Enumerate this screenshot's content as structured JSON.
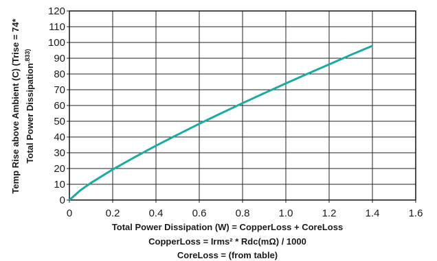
{
  "chart_data": {
    "type": "line",
    "y_label": {
      "line1": "Temp Rise above Ambient (C) (Trise = 74*",
      "line2": "Total Power Dissipation",
      "line2_superscript": ".833)"
    },
    "x_label_lines": [
      "Total Power Dissipation (W) = CopperLoss + CoreLoss",
      "CopperLoss = Irms² * Rdc(mΩ) / 1000",
      "CoreLoss = (from table)"
    ],
    "x": [
      0,
      0.05,
      0.1,
      0.2,
      0.3,
      0.4,
      0.5,
      0.6,
      0.7,
      0.8,
      0.9,
      1.0,
      1.1,
      1.2,
      1.3,
      1.4
    ],
    "series": [
      {
        "color": "#1aaba3",
        "values": [
          0,
          6.1,
          10.9,
          19.4,
          27.1,
          34.5,
          41.5,
          48.4,
          55.0,
          61.5,
          67.8,
          74.0,
          80.1,
          86.1,
          92.1,
          97.9
        ]
      }
    ],
    "xlim": [
      0,
      1.6
    ],
    "ylim": [
      0,
      120
    ],
    "xticks": [
      0,
      0.2,
      0.4,
      0.6,
      0.8,
      {
        "value": 1,
        "label": "1.0"
      },
      1.2,
      1.4,
      1.6
    ],
    "yticks": [
      0,
      10,
      20,
      30,
      40,
      50,
      60,
      70,
      80,
      90,
      100,
      110,
      120
    ],
    "grid": true
  }
}
